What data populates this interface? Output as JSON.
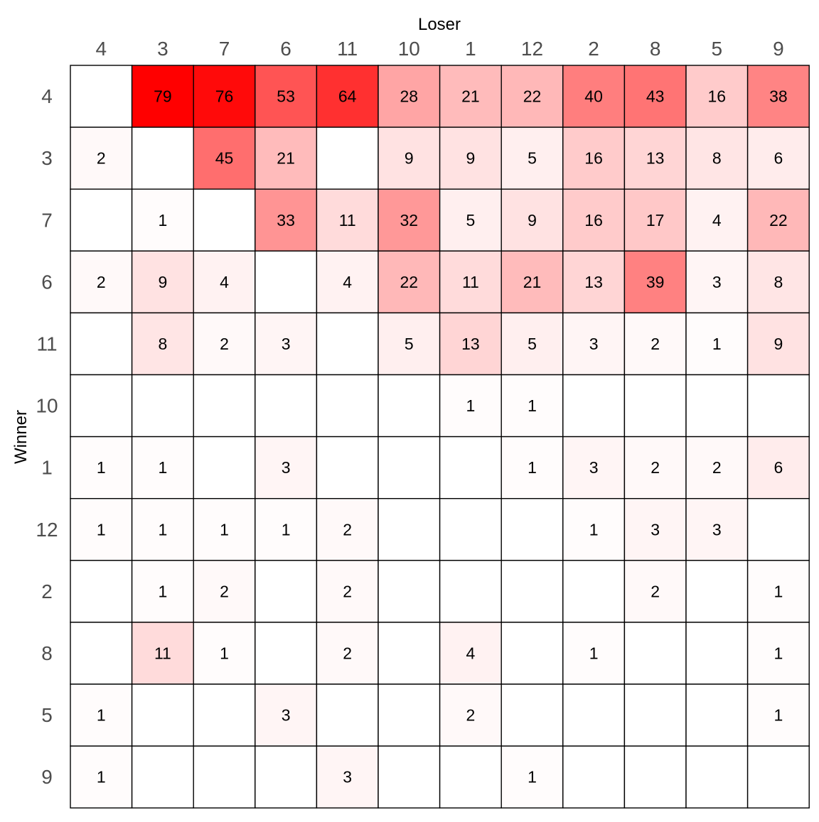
{
  "chart_data": {
    "type": "heatmap",
    "title": "",
    "xlabel": "Loser",
    "ylabel": "Winner",
    "x_categories": [
      "4",
      "3",
      "7",
      "6",
      "11",
      "10",
      "1",
      "12",
      "2",
      "8",
      "5",
      "9"
    ],
    "y_categories": [
      "4",
      "3",
      "7",
      "6",
      "11",
      "10",
      "1",
      "12",
      "2",
      "8",
      "5",
      "9"
    ],
    "values": [
      [
        null,
        79,
        76,
        53,
        64,
        28,
        21,
        22,
        40,
        43,
        16,
        38
      ],
      [
        2,
        null,
        45,
        21,
        null,
        9,
        9,
        5,
        16,
        13,
        8,
        6
      ],
      [
        null,
        1,
        null,
        33,
        11,
        32,
        5,
        9,
        16,
        17,
        4,
        22
      ],
      [
        2,
        9,
        4,
        null,
        4,
        22,
        11,
        21,
        13,
        39,
        3,
        8
      ],
      [
        null,
        8,
        2,
        3,
        null,
        5,
        13,
        5,
        3,
        2,
        1,
        9
      ],
      [
        null,
        null,
        null,
        null,
        null,
        null,
        1,
        1,
        null,
        null,
        null,
        null
      ],
      [
        1,
        1,
        null,
        3,
        null,
        null,
        null,
        1,
        3,
        2,
        2,
        6
      ],
      [
        1,
        1,
        1,
        1,
        2,
        null,
        null,
        null,
        1,
        3,
        3,
        null
      ],
      [
        null,
        1,
        2,
        null,
        2,
        null,
        null,
        null,
        null,
        2,
        null,
        1
      ],
      [
        null,
        11,
        1,
        null,
        2,
        null,
        4,
        null,
        1,
        null,
        null,
        1
      ],
      [
        1,
        null,
        null,
        3,
        null,
        null,
        2,
        null,
        null,
        null,
        null,
        1
      ],
      [
        1,
        null,
        null,
        null,
        3,
        null,
        null,
        1,
        null,
        null,
        null,
        null
      ]
    ],
    "color_scale": {
      "low": "#ffffff",
      "high": "#ff0000",
      "min": 0,
      "max": 79
    },
    "grid_color": "#000000",
    "legend": "none"
  }
}
